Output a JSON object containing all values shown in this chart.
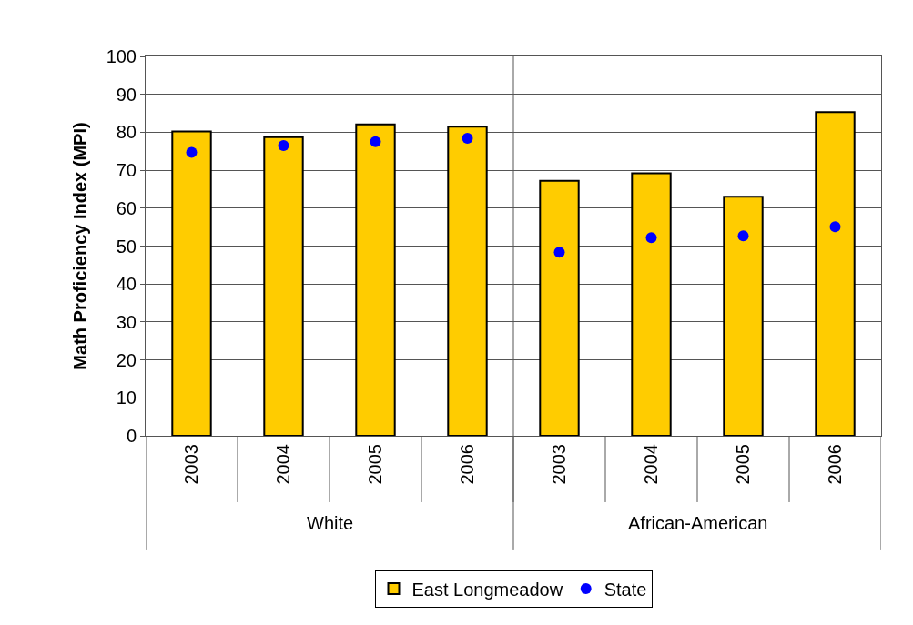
{
  "chart_data": {
    "type": "bar",
    "ylabel": "Math Proficiency Index (MPI)",
    "categories": [
      "2003",
      "2004",
      "2005",
      "2006",
      "2003",
      "2004",
      "2005",
      "2006"
    ],
    "series": [
      {
        "name": "East Longmeadow",
        "color": "#ffcc00",
        "values": [
          80.2,
          78.7,
          82.1,
          81.5,
          67.2,
          69.2,
          63.0,
          85.3
        ]
      },
      {
        "name": "State",
        "type": "scatter",
        "color": "#0000ff",
        "values": [
          74.7,
          76.5,
          77.5,
          78.4,
          48.4,
          52.2,
          52.7,
          55.1
        ]
      }
    ],
    "annotations": [
      "White",
      "African-American"
    ],
    "ylim": [
      0,
      100
    ],
    "yticks": [
      0,
      10,
      20,
      30,
      40,
      50,
      60,
      70,
      80,
      90,
      100
    ],
    "grid": "y",
    "legend": "bottom",
    "marker": "circle"
  }
}
